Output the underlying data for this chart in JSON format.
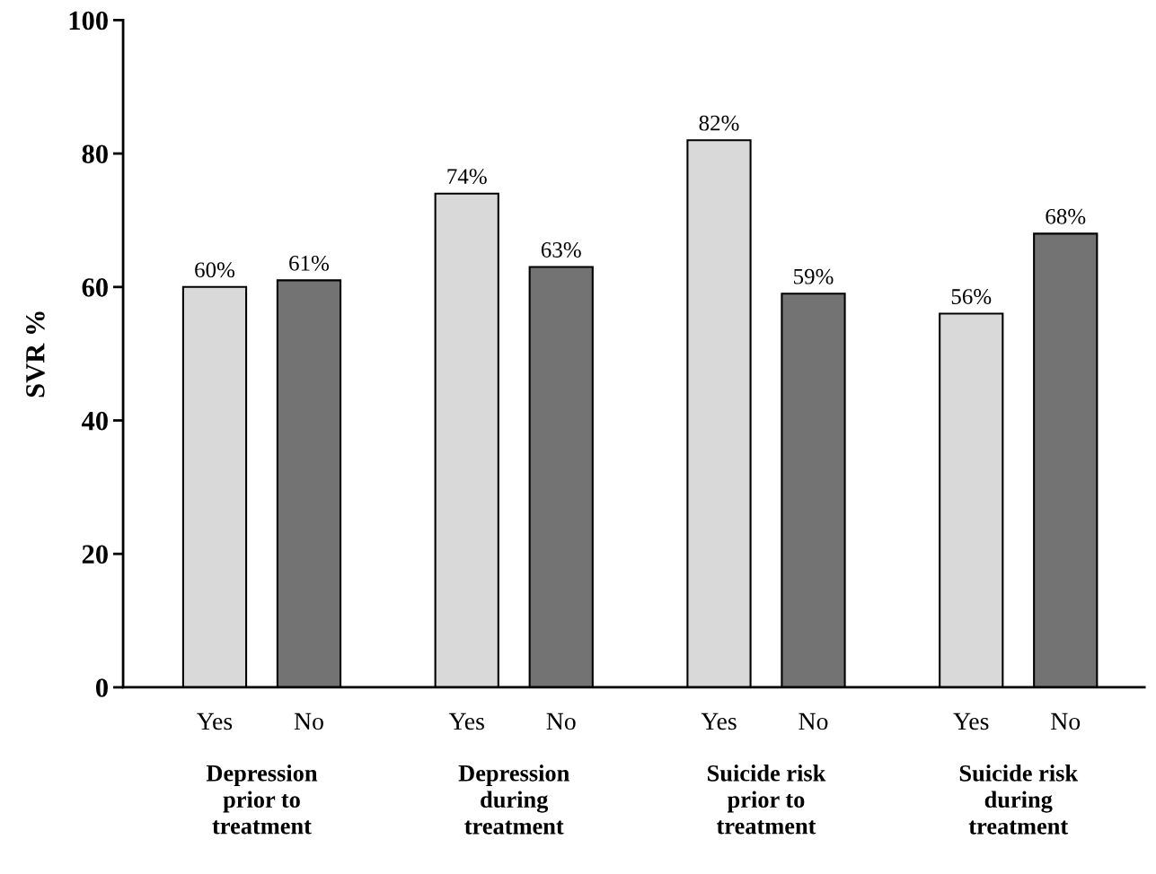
{
  "chart_data": {
    "type": "bar",
    "ylabel": "SVR %",
    "categories": [
      "Depression\nprior to\ntreatment",
      "Depression\nduring\ntreatment",
      "Suicide risk\nprior to\ntreatment",
      "Suicide risk\nduring\ntreatment"
    ],
    "series": [
      {
        "name": "Yes",
        "color": "#d9d9d9",
        "values": [
          60,
          74,
          82,
          56
        ],
        "value_labels": [
          "60%",
          "74%",
          "82%",
          "56%"
        ]
      },
      {
        "name": "No",
        "color": "#737373",
        "values": [
          61,
          63,
          59,
          68
        ],
        "value_labels": [
          "61%",
          "63%",
          "59%",
          "68%"
        ]
      }
    ],
    "ylim": [
      0,
      100
    ],
    "yticks": [
      0,
      20,
      40,
      60,
      80,
      100
    ],
    "grid": false,
    "legend": false
  }
}
